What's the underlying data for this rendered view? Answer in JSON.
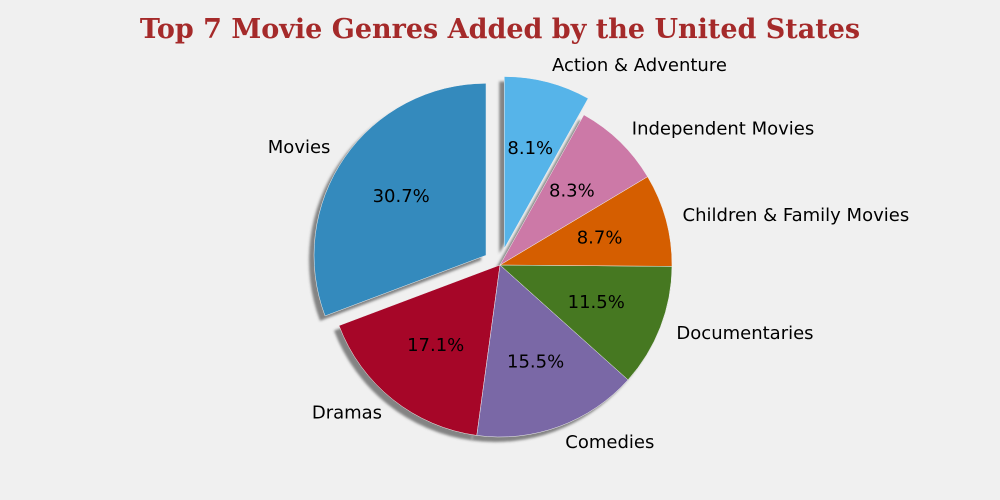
{
  "chart_data": {
    "type": "pie",
    "title": "Top 7 Movie Genres Added by the United States",
    "slices": [
      {
        "label": "Movies",
        "value": 30.7,
        "display": "30.7%",
        "color": "#348abd",
        "exploded": true
      },
      {
        "label": "Dramas",
        "value": 17.1,
        "display": "17.1%",
        "color": "#a60628",
        "exploded": false
      },
      {
        "label": "Comedies",
        "value": 15.5,
        "display": "15.5%",
        "color": "#7a68a6",
        "exploded": false
      },
      {
        "label": "Documentaries",
        "value": 11.5,
        "display": "11.5%",
        "color": "#467821",
        "exploded": false
      },
      {
        "label": "Children & Family Movies",
        "value": 8.7,
        "display": "8.7%",
        "color": "#d55e00",
        "exploded": false
      },
      {
        "label": "Independent Movies",
        "value": 8.3,
        "display": "8.3%",
        "color": "#cc79a7",
        "exploded": false
      },
      {
        "label": "Action & Adventure",
        "value": 8.1,
        "display": "8.1%",
        "color": "#56b4e9",
        "exploded": true
      }
    ],
    "start_angle_deg": 90,
    "direction": "counterclockwise",
    "shadow": true,
    "legend": "none"
  }
}
